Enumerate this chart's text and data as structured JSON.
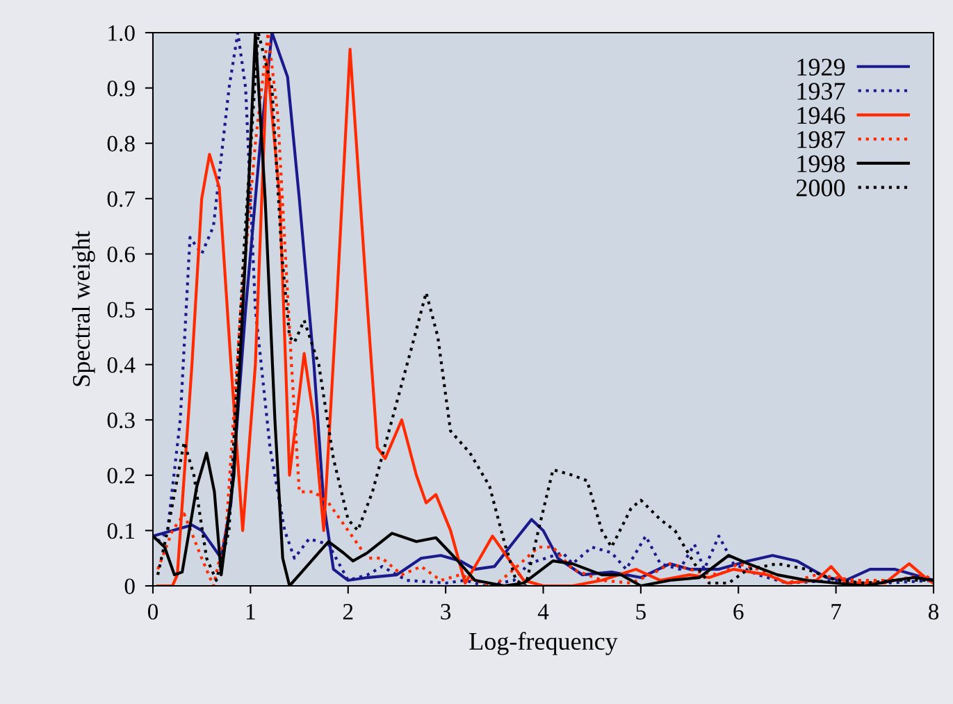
{
  "chart_data": {
    "type": "line",
    "xlabel": "Log-frequency",
    "ylabel": "Spectral weight",
    "xlim": [
      0,
      8
    ],
    "ylim": [
      0,
      1.0
    ],
    "xticks": [
      0,
      1,
      2,
      3,
      4,
      5,
      6,
      7,
      8
    ],
    "yticks": [
      0,
      0.1,
      0.2,
      0.3,
      0.4,
      0.5,
      0.6,
      0.7,
      0.8,
      0.9,
      {
        "value": 1.0,
        "label": "1.0"
      }
    ],
    "grid": false,
    "legend": "top right",
    "series": [
      {
        "name": "1929",
        "color": "#1a1a8c",
        "line_style": "solid",
        "x": [
          0,
          0.2,
          0.4,
          0.5,
          0.7,
          0.8,
          0.95,
          1.1,
          1.22,
          1.38,
          1.5,
          1.65,
          1.75,
          1.85,
          2.0,
          2.2,
          2.5,
          2.75,
          2.95,
          3.15,
          3.3,
          3.5,
          3.7,
          3.88,
          4.0,
          4.15,
          4.4,
          4.7,
          5.0,
          5.3,
          5.5,
          5.8,
          6.1,
          6.35,
          6.6,
          6.9,
          7.1,
          7.35,
          7.6,
          7.9,
          8.0
        ],
        "values": [
          0.09,
          0.1,
          0.11,
          0.1,
          0.05,
          0.15,
          0.5,
          0.8,
          1.0,
          0.92,
          0.7,
          0.4,
          0.15,
          0.03,
          0.01,
          0.015,
          0.02,
          0.05,
          0.055,
          0.045,
          0.03,
          0.035,
          0.08,
          0.12,
          0.1,
          0.05,
          0.02,
          0.025,
          0.015,
          0.04,
          0.03,
          0.03,
          0.045,
          0.055,
          0.045,
          0.015,
          0.01,
          0.03,
          0.03,
          0.015,
          0.01
        ]
      },
      {
        "name": "1937",
        "color": "#1a1a8c",
        "line_style": "dotted",
        "x": [
          0.05,
          0.15,
          0.28,
          0.38,
          0.5,
          0.62,
          0.78,
          0.87,
          0.95,
          1.05,
          1.2,
          1.35,
          1.45,
          1.6,
          1.8,
          2.0,
          2.2,
          2.35,
          2.6,
          3.0,
          3.2,
          3.4,
          3.7,
          3.85,
          4.2,
          4.3,
          4.5,
          4.7,
          4.85,
          5.05,
          5.2,
          5.4,
          5.55,
          5.65,
          5.8,
          5.95,
          6.2,
          6.5,
          7.0,
          7.5,
          8.0
        ],
        "values": [
          0.08,
          0.1,
          0.3,
          0.63,
          0.6,
          0.65,
          0.9,
          1.0,
          0.9,
          0.5,
          0.25,
          0.1,
          0.05,
          0.085,
          0.075,
          0.01,
          0.02,
          0.035,
          0.01,
          0.005,
          0.01,
          0.0,
          0.01,
          0.04,
          0.06,
          0.04,
          0.07,
          0.06,
          0.03,
          0.09,
          0.04,
          0.03,
          0.075,
          0.03,
          0.09,
          0.04,
          0.02,
          0.005,
          0.01,
          0.005,
          0.01
        ]
      },
      {
        "name": "1946",
        "color": "#ff2a00",
        "line_style": "solid",
        "x": [
          0.05,
          0.2,
          0.25,
          0.4,
          0.5,
          0.58,
          0.68,
          0.8,
          0.92,
          1.05,
          1.17,
          1.3,
          1.4,
          1.55,
          1.65,
          1.75,
          1.88,
          2.02,
          2.2,
          2.3,
          2.38,
          2.55,
          2.7,
          2.8,
          2.9,
          3.05,
          3.2,
          3.35,
          3.48,
          3.6,
          3.8,
          4.0,
          4.3,
          4.6,
          4.95,
          5.2,
          5.5,
          5.7,
          5.95,
          6.3,
          6.5,
          6.8,
          6.95,
          7.1,
          7.5,
          7.75,
          7.95,
          8.0
        ],
        "values": [
          0.0,
          0.0,
          0.02,
          0.4,
          0.7,
          0.78,
          0.72,
          0.4,
          0.1,
          0.4,
          0.95,
          0.7,
          0.2,
          0.42,
          0.3,
          0.1,
          0.5,
          0.97,
          0.5,
          0.25,
          0.23,
          0.3,
          0.2,
          0.15,
          0.165,
          0.1,
          0.005,
          0.05,
          0.09,
          0.06,
          0.01,
          0.0,
          0.0,
          0.01,
          0.03,
          0.01,
          0.02,
          0.015,
          0.03,
          0.02,
          0.005,
          0.01,
          0.035,
          0.005,
          0.005,
          0.04,
          0.01,
          0.005
        ]
      },
      {
        "name": "1987",
        "color": "#ff2a00",
        "line_style": "dotted",
        "x": [
          0.05,
          0.2,
          0.32,
          0.5,
          0.62,
          0.75,
          0.9,
          1.05,
          1.18,
          1.28,
          1.42,
          1.5,
          1.65,
          1.8,
          2.0,
          2.2,
          2.35,
          2.55,
          2.75,
          2.95,
          3.15,
          3.3,
          3.5,
          3.7,
          3.95,
          4.1,
          4.3,
          4.6,
          4.9,
          5.1,
          5.3,
          5.6,
          5.8,
          6.0,
          6.2,
          6.5,
          6.8,
          7.2,
          7.6,
          7.9,
          8.0
        ],
        "values": [
          0.03,
          0.1,
          0.13,
          0.05,
          0.0,
          0.1,
          0.5,
          0.8,
          1.0,
          0.85,
          0.4,
          0.17,
          0.17,
          0.15,
          0.1,
          0.05,
          0.05,
          0.02,
          0.035,
          0.01,
          0.02,
          0.01,
          0.0,
          0.03,
          0.07,
          0.07,
          0.03,
          0.01,
          0.005,
          0.02,
          0.04,
          0.025,
          0.02,
          0.04,
          0.03,
          0.005,
          0.02,
          0.01,
          0.01,
          0.02,
          0.01
        ]
      },
      {
        "name": "1998",
        "color": "#000000",
        "line_style": "solid",
        "x": [
          0.0,
          0.12,
          0.22,
          0.3,
          0.45,
          0.55,
          0.63,
          0.7,
          0.83,
          0.95,
          1.05,
          1.15,
          1.25,
          1.33,
          1.4,
          1.55,
          1.7,
          1.8,
          1.95,
          2.05,
          2.2,
          2.45,
          2.7,
          2.9,
          3.1,
          3.3,
          3.6,
          3.8,
          4.1,
          4.3,
          4.6,
          4.8,
          5.0,
          5.3,
          5.6,
          5.9,
          6.1,
          6.4,
          6.7,
          7.0,
          7.3,
          7.6,
          7.8,
          8.0
        ],
        "values": [
          0.09,
          0.07,
          0.02,
          0.025,
          0.18,
          0.24,
          0.17,
          0.02,
          0.2,
          0.6,
          1.0,
          0.7,
          0.3,
          0.05,
          0.0,
          0.03,
          0.06,
          0.08,
          0.06,
          0.045,
          0.06,
          0.095,
          0.08,
          0.087,
          0.05,
          0.01,
          0.0,
          0.005,
          0.045,
          0.04,
          0.02,
          0.02,
          0.0,
          0.01,
          0.015,
          0.055,
          0.04,
          0.02,
          0.01,
          0.005,
          0.0,
          0.01,
          0.015,
          0.01
        ]
      },
      {
        "name": "2000",
        "color": "#000000",
        "line_style": "dotted",
        "x": [
          0.05,
          0.15,
          0.32,
          0.42,
          0.55,
          0.65,
          0.78,
          0.93,
          1.08,
          1.22,
          1.32,
          1.4,
          1.45,
          1.55,
          1.7,
          1.85,
          2.0,
          2.1,
          2.25,
          2.45,
          2.65,
          2.8,
          2.92,
          3.05,
          3.25,
          3.45,
          3.6,
          3.72,
          3.82,
          3.95,
          4.1,
          4.3,
          4.45,
          4.6,
          4.7,
          4.9,
          5.0,
          5.2,
          5.35,
          5.55,
          5.7,
          5.9,
          6.1,
          6.4,
          6.7,
          7.0,
          7.3,
          7.6,
          8.0
        ],
        "values": [
          0.02,
          0.1,
          0.26,
          0.2,
          0.05,
          0.01,
          0.1,
          0.6,
          1.0,
          0.9,
          0.6,
          0.45,
          0.44,
          0.48,
          0.4,
          0.23,
          0.12,
          0.1,
          0.17,
          0.3,
          0.43,
          0.53,
          0.45,
          0.28,
          0.24,
          0.18,
          0.08,
          0.01,
          0.0,
          0.1,
          0.21,
          0.2,
          0.19,
          0.1,
          0.07,
          0.14,
          0.155,
          0.12,
          0.1,
          0.04,
          0.005,
          0.005,
          0.03,
          0.04,
          0.03,
          0.01,
          0.005,
          0.01,
          0.01
        ]
      }
    ]
  }
}
